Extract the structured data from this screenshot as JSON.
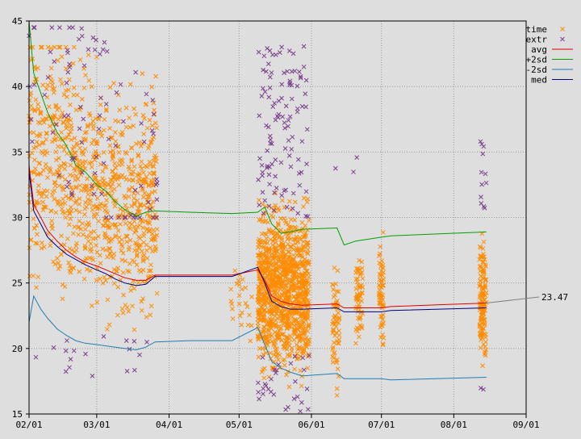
{
  "chart_data": {
    "type": "scatter",
    "title": "",
    "xlabel": "",
    "ylabel": "",
    "x_ticks": [
      "02/01",
      "03/01",
      "04/01",
      "05/01",
      "06/01",
      "07/01",
      "08/01",
      "09/01"
    ],
    "x_domain": [
      "2024-02-01",
      "2024-09-01"
    ],
    "ylim": [
      15,
      45
    ],
    "y_ticks": [
      15,
      20,
      25,
      30,
      35,
      40,
      45
    ],
    "grid": true,
    "legend_placement": "top-right",
    "legend": [
      {
        "name": "time",
        "marker": "x",
        "color": "#ff8c00"
      },
      {
        "name": "extr",
        "marker": "x",
        "color": "#7b3f8c"
      },
      {
        "name": "avg",
        "marker": "line",
        "color": "#e00000"
      },
      {
        "name": "+2sd",
        "marker": "line",
        "color": "#00a000"
      },
      {
        "name": "-2sd",
        "marker": "line",
        "color": "#1f7fb0"
      },
      {
        "name": "med",
        "marker": "line",
        "color": "#000080"
      }
    ],
    "annotation": {
      "text": "23.47",
      "x": "2024-08-15",
      "y": 23.47
    },
    "series": [
      {
        "name": "+2sd",
        "color": "#00a000",
        "points": [
          [
            "2024-02-01",
            45
          ],
          [
            "2024-02-03",
            41
          ],
          [
            "2024-02-06",
            39.5
          ],
          [
            "2024-02-09",
            38
          ],
          [
            "2024-02-13",
            36.5
          ],
          [
            "2024-02-17",
            35.5
          ],
          [
            "2024-02-21",
            34
          ],
          [
            "2024-02-25",
            33.5
          ],
          [
            "2024-03-01",
            32.5
          ],
          [
            "2024-03-05",
            32
          ],
          [
            "2024-03-09",
            31.2
          ],
          [
            "2024-03-13",
            30.6
          ],
          [
            "2024-03-18",
            30.1
          ],
          [
            "2024-03-22",
            30.4
          ],
          [
            "2024-03-26",
            30.5
          ],
          [
            "2024-04-10",
            30.4
          ],
          [
            "2024-04-28",
            30.3
          ],
          [
            "2024-05-09",
            30.4
          ],
          [
            "2024-05-12",
            30.8
          ],
          [
            "2024-05-15",
            29.5
          ],
          [
            "2024-05-19",
            28.8
          ],
          [
            "2024-05-23",
            28.9
          ],
          [
            "2024-05-28",
            29.1
          ],
          [
            "2024-06-12",
            29.2
          ],
          [
            "2024-06-15",
            27.9
          ],
          [
            "2024-06-20",
            28.2
          ],
          [
            "2024-07-01",
            28.5
          ],
          [
            "2024-07-05",
            28.6
          ],
          [
            "2024-08-15",
            28.9
          ]
        ]
      },
      {
        "name": "avg",
        "color": "#e00000",
        "points": [
          [
            "2024-02-01",
            34
          ],
          [
            "2024-02-03",
            31
          ],
          [
            "2024-02-06",
            30
          ],
          [
            "2024-02-09",
            29
          ],
          [
            "2024-02-13",
            28.2
          ],
          [
            "2024-02-17",
            27.5
          ],
          [
            "2024-02-21",
            27
          ],
          [
            "2024-02-25",
            26.6
          ],
          [
            "2024-03-01",
            26.3
          ],
          [
            "2024-03-05",
            26
          ],
          [
            "2024-03-09",
            25.7
          ],
          [
            "2024-03-13",
            25.4
          ],
          [
            "2024-03-18",
            25.2
          ],
          [
            "2024-03-22",
            25.2
          ],
          [
            "2024-03-26",
            25.6
          ],
          [
            "2024-04-10",
            25.6
          ],
          [
            "2024-04-28",
            25.6
          ],
          [
            "2024-05-09",
            26
          ],
          [
            "2024-05-12",
            25.2
          ],
          [
            "2024-05-15",
            24
          ],
          [
            "2024-05-19",
            23.6
          ],
          [
            "2024-05-23",
            23.4
          ],
          [
            "2024-05-28",
            23.3
          ],
          [
            "2024-06-12",
            23.4
          ],
          [
            "2024-06-15",
            23.1
          ],
          [
            "2024-06-20",
            23.1
          ],
          [
            "2024-07-01",
            23.1
          ],
          [
            "2024-07-05",
            23.2
          ],
          [
            "2024-08-15",
            23.47
          ]
        ]
      },
      {
        "name": "med",
        "color": "#000080",
        "points": [
          [
            "2024-02-01",
            33.5
          ],
          [
            "2024-02-03",
            30.5
          ],
          [
            "2024-02-06",
            29.5
          ],
          [
            "2024-02-09",
            28.5
          ],
          [
            "2024-02-13",
            27.8
          ],
          [
            "2024-02-17",
            27.2
          ],
          [
            "2024-02-21",
            26.8
          ],
          [
            "2024-02-25",
            26.4
          ],
          [
            "2024-03-01",
            26
          ],
          [
            "2024-03-05",
            25.7
          ],
          [
            "2024-03-09",
            25.3
          ],
          [
            "2024-03-13",
            25
          ],
          [
            "2024-03-18",
            24.8
          ],
          [
            "2024-03-22",
            24.9
          ],
          [
            "2024-03-26",
            25.5
          ],
          [
            "2024-04-10",
            25.5
          ],
          [
            "2024-04-28",
            25.5
          ],
          [
            "2024-05-09",
            26.2
          ],
          [
            "2024-05-12",
            25
          ],
          [
            "2024-05-15",
            23.6
          ],
          [
            "2024-05-19",
            23.2
          ],
          [
            "2024-05-23",
            23
          ],
          [
            "2024-05-28",
            23
          ],
          [
            "2024-06-12",
            23.1
          ],
          [
            "2024-06-15",
            22.8
          ],
          [
            "2024-06-20",
            22.8
          ],
          [
            "2024-07-01",
            22.8
          ],
          [
            "2024-07-05",
            22.9
          ],
          [
            "2024-08-15",
            23.1
          ]
        ]
      },
      {
        "name": "-2sd",
        "color": "#1f7fb0",
        "points": [
          [
            "2024-02-01",
            22
          ],
          [
            "2024-02-03",
            24
          ],
          [
            "2024-02-06",
            23
          ],
          [
            "2024-02-09",
            22.3
          ],
          [
            "2024-02-13",
            21.5
          ],
          [
            "2024-02-17",
            21
          ],
          [
            "2024-02-21",
            20.6
          ],
          [
            "2024-02-25",
            20.4
          ],
          [
            "2024-03-01",
            20.3
          ],
          [
            "2024-03-05",
            20.2
          ],
          [
            "2024-03-09",
            20.1
          ],
          [
            "2024-03-13",
            20
          ],
          [
            "2024-03-18",
            19.9
          ],
          [
            "2024-03-22",
            20.1
          ],
          [
            "2024-03-26",
            20.5
          ],
          [
            "2024-04-10",
            20.6
          ],
          [
            "2024-04-28",
            20.6
          ],
          [
            "2024-05-09",
            21.6
          ],
          [
            "2024-05-12",
            20.3
          ],
          [
            "2024-05-15",
            19
          ],
          [
            "2024-05-19",
            18.5
          ],
          [
            "2024-05-23",
            18.2
          ],
          [
            "2024-05-28",
            17.9
          ],
          [
            "2024-06-12",
            18.1
          ],
          [
            "2024-06-15",
            17.7
          ],
          [
            "2024-06-20",
            17.7
          ],
          [
            "2024-07-01",
            17.7
          ],
          [
            "2024-07-05",
            17.6
          ],
          [
            "2024-08-15",
            17.8
          ]
        ]
      }
    ],
    "scatter_regions": {
      "time": [
        {
          "start": "2024-02-01",
          "end": "2024-03-27",
          "y_lo": 19.5,
          "y_hi": 43,
          "count": 900
        },
        {
          "start": "2024-04-27",
          "end": "2024-05-07",
          "y_lo": 19.5,
          "y_hi": 27,
          "count": 25
        },
        {
          "start": "2024-05-09",
          "end": "2024-05-31",
          "y_lo": 16,
          "y_hi": 33,
          "count": 1100
        },
        {
          "start": "2024-06-10",
          "end": "2024-06-13",
          "y_lo": 15.5,
          "y_hi": 28.5,
          "count": 60
        },
        {
          "start": "2024-06-20",
          "end": "2024-06-23",
          "y_lo": 18.5,
          "y_hi": 29,
          "count": 60
        },
        {
          "start": "2024-06-30",
          "end": "2024-07-02",
          "y_lo": 18,
          "y_hi": 30,
          "count": 60
        },
        {
          "start": "2024-08-12",
          "end": "2024-08-15",
          "y_lo": 17.5,
          "y_hi": 30,
          "count": 140
        }
      ],
      "extr": [
        {
          "start": "2024-02-01",
          "end": "2024-03-27",
          "y_lo": 30,
          "y_hi": 44.5,
          "count": 95
        },
        {
          "start": "2024-02-01",
          "end": "2024-03-27",
          "y_lo": 17.5,
          "y_hi": 21,
          "count": 18
        },
        {
          "start": "2024-05-09",
          "end": "2024-05-31",
          "y_lo": 30,
          "y_hi": 43.5,
          "count": 110
        },
        {
          "start": "2024-05-09",
          "end": "2024-05-31",
          "y_lo": 15.2,
          "y_hi": 19.5,
          "count": 30
        },
        {
          "start": "2024-06-10",
          "end": "2024-06-22",
          "y_lo": 33,
          "y_hi": 35,
          "count": 3
        },
        {
          "start": "2024-08-12",
          "end": "2024-08-15",
          "y_lo": 30,
          "y_hi": 36,
          "count": 12
        },
        {
          "start": "2024-08-12",
          "end": "2024-08-15",
          "y_lo": 16.5,
          "y_hi": 17,
          "count": 2
        }
      ]
    }
  }
}
